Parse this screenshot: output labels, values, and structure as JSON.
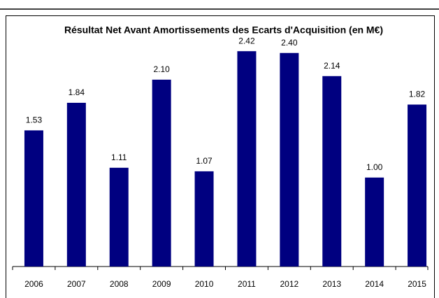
{
  "chart_data": {
    "type": "bar",
    "title": "Résultat Net Avant Amortissements des Ecarts d'Acquisition (en M€)",
    "categories": [
      "2006",
      "2007",
      "2008",
      "2009",
      "2010",
      "2011",
      "2012",
      "2013",
      "2014",
      "2015"
    ],
    "values": [
      1.53,
      1.84,
      1.11,
      2.1,
      1.07,
      2.42,
      2.4,
      2.14,
      1.0,
      1.82
    ],
    "value_labels": [
      "1.53",
      "1.84",
      "1.11",
      "2.10",
      "1.07",
      "2.42",
      "2.40",
      "2.14",
      "1.00",
      "1.82"
    ],
    "color": "#000080",
    "ylim": [
      0,
      2.5
    ]
  }
}
